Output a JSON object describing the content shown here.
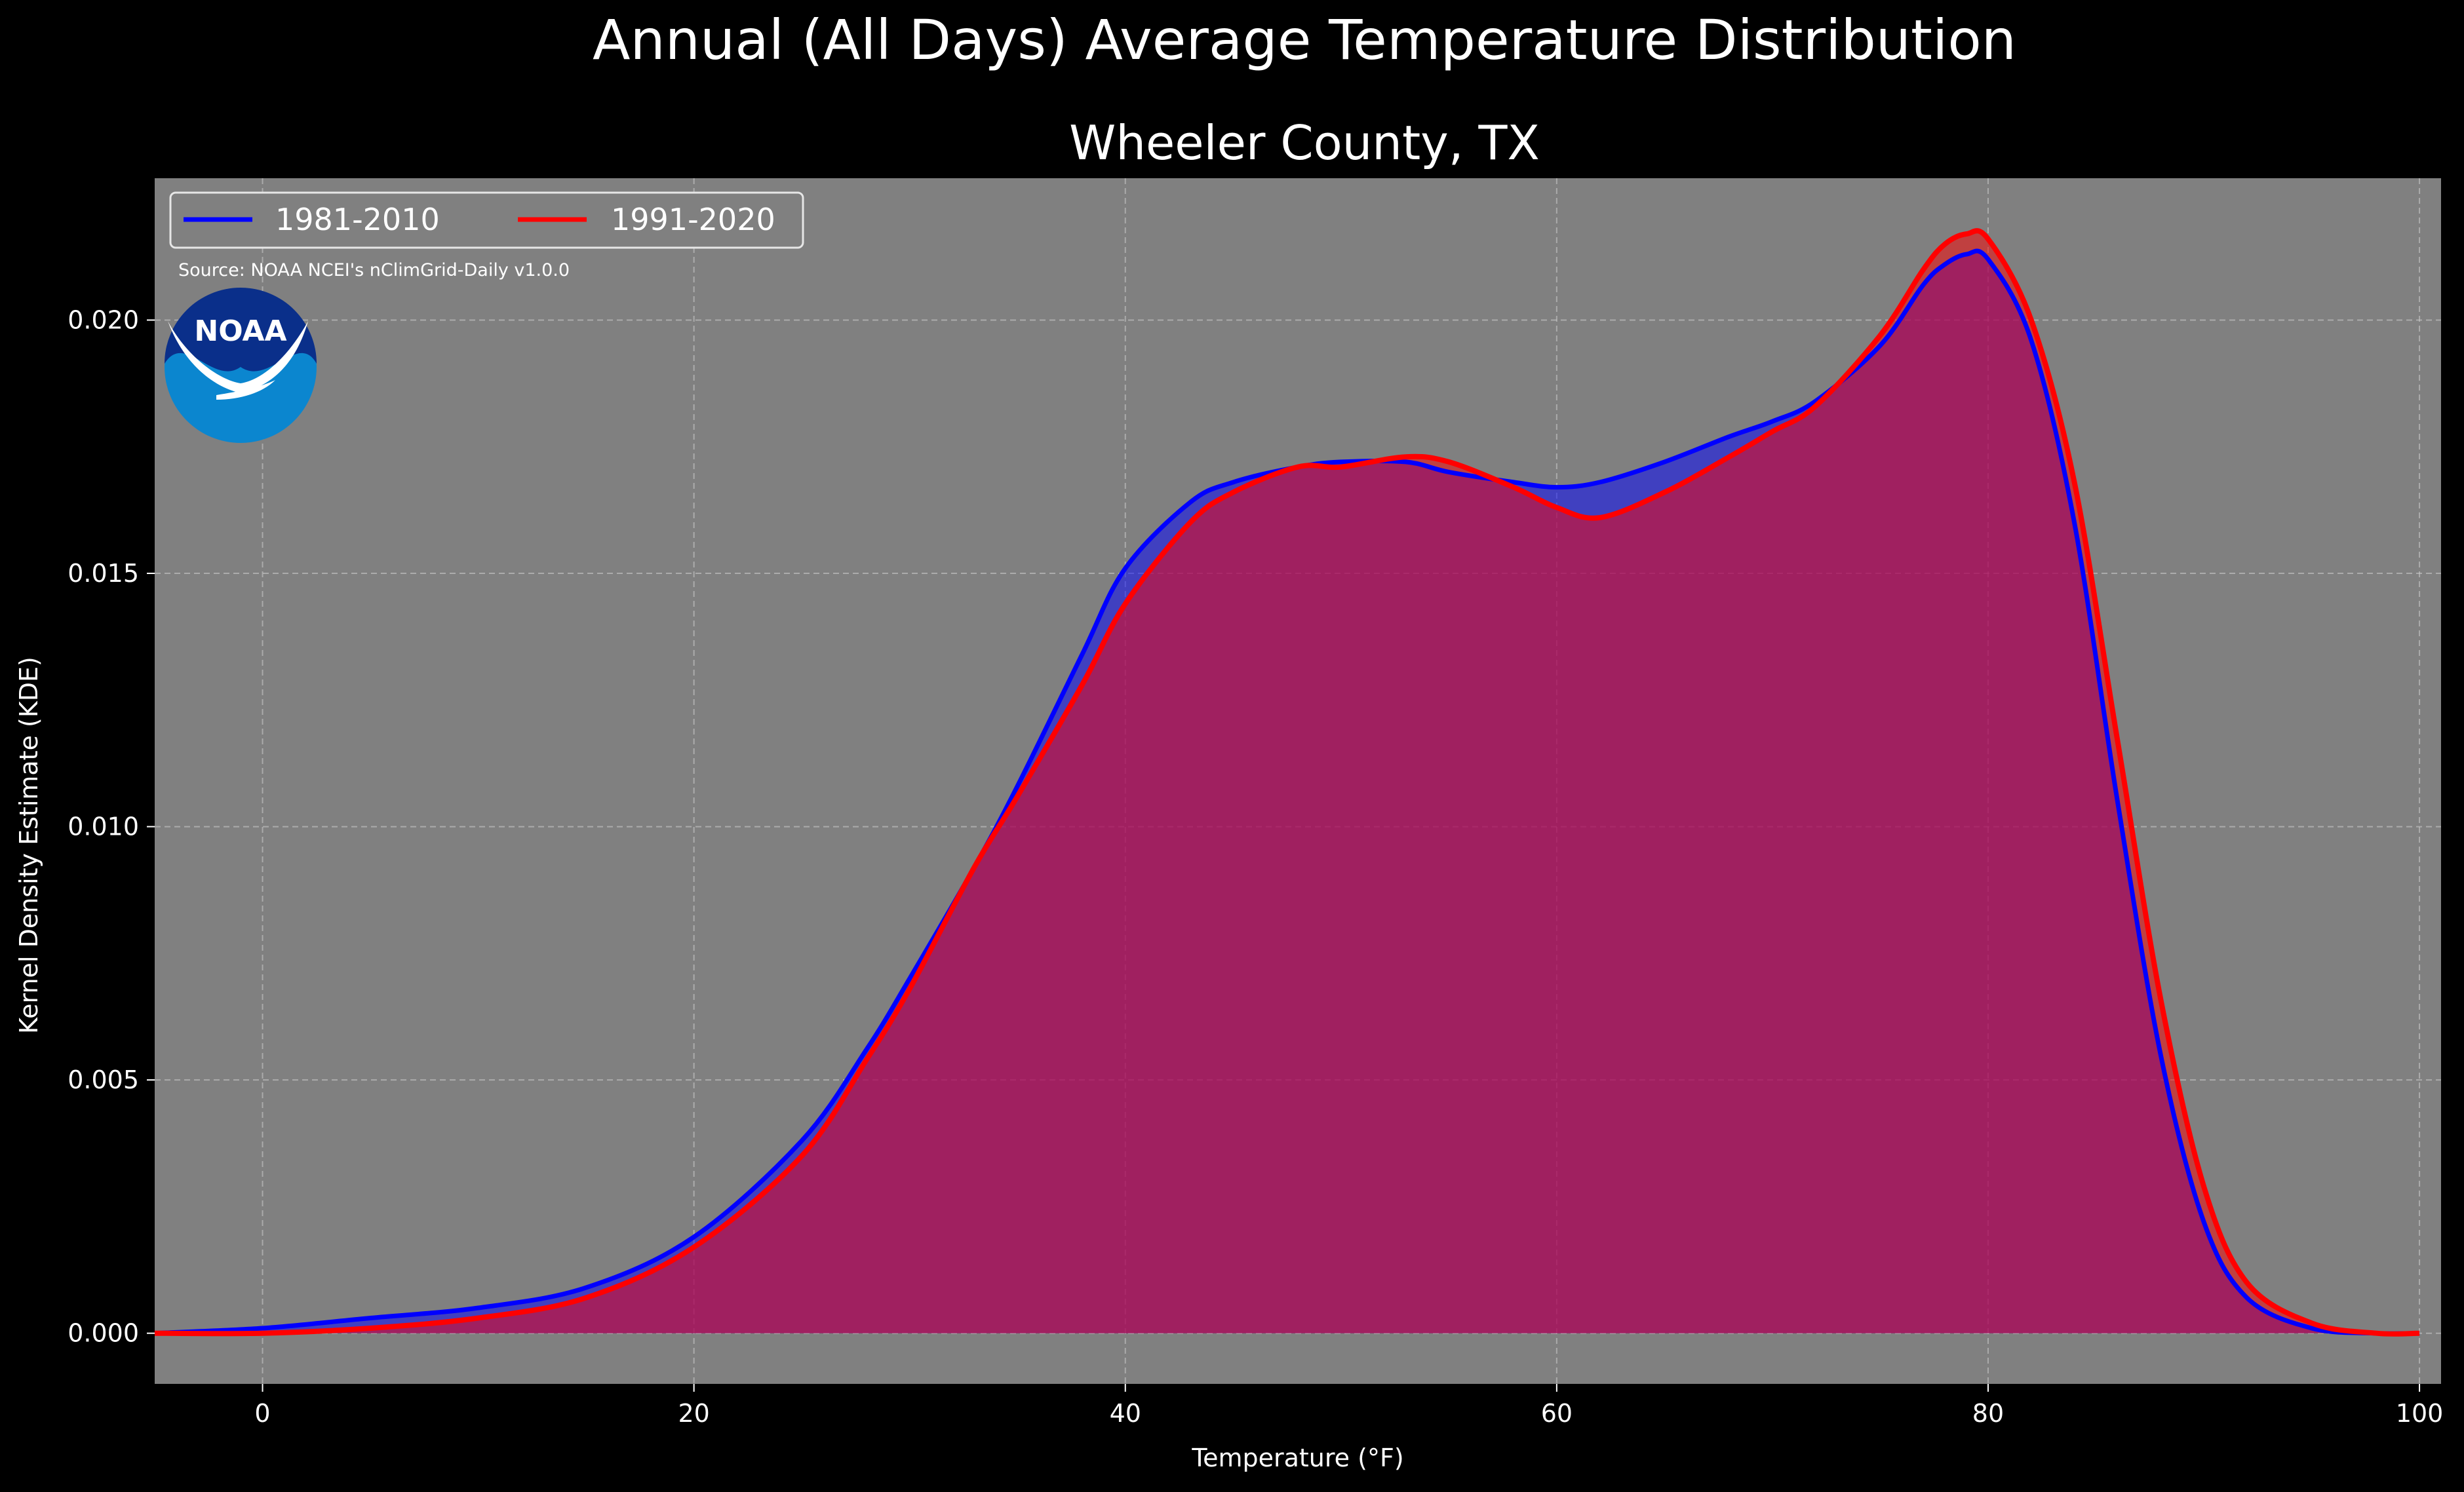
{
  "figure": {
    "suptitle": "Annual (All Days) Average Temperature Distribution",
    "source": "Source: NOAA NCEI's nClimGrid-Daily v1.0.0",
    "logo_text": "NOAA"
  },
  "colors": {
    "background": "#000000",
    "plot_background": "#808080",
    "series_1981": "#0000ff",
    "series_1991": "#ff0000",
    "overlap_fill": "#9e1f5e",
    "logo_blue_dark": "#0a2f8a",
    "logo_blue_light": "#0b86cf"
  },
  "chart_data": {
    "type": "area",
    "title": "Wheeler County, TX",
    "xlabel": "Temperature (°F)",
    "ylabel": "Kernel Density Estimate (KDE)",
    "xlim": [
      -5,
      101
    ],
    "ylim": [
      -0.001,
      0.0228
    ],
    "xticks": [
      0,
      20,
      40,
      60,
      80,
      100
    ],
    "xtick_labels": [
      "0",
      "20",
      "40",
      "60",
      "80",
      "100"
    ],
    "yticks": [
      0.0,
      0.005,
      0.01,
      0.015,
      0.02
    ],
    "ytick_labels": [
      "0.000",
      "0.005",
      "0.010",
      "0.015",
      "0.020"
    ],
    "grid": true,
    "legend_position": "top-left",
    "x": [
      -5,
      0,
      5,
      10,
      15,
      20,
      25,
      28,
      30,
      33,
      35,
      38,
      40,
      43,
      45,
      48,
      50,
      53,
      55,
      58,
      60,
      62,
      65,
      68,
      70,
      72,
      75,
      77,
      78,
      79,
      80,
      82,
      84,
      86,
      88,
      90,
      92,
      95,
      98,
      100
    ],
    "series": [
      {
        "name": "1981-2010",
        "values": [
          0.0,
          0.0001,
          0.0003,
          0.0005,
          0.0009,
          0.0019,
          0.0038,
          0.0056,
          0.007,
          0.0092,
          0.0108,
          0.0134,
          0.0151,
          0.0164,
          0.0168,
          0.0171,
          0.0172,
          0.0172,
          0.017,
          0.0168,
          0.0167,
          0.0168,
          0.0172,
          0.0177,
          0.018,
          0.0184,
          0.0195,
          0.0207,
          0.0211,
          0.0213,
          0.0212,
          0.0196,
          0.016,
          0.0105,
          0.0055,
          0.0022,
          0.0007,
          0.0001,
          0.0,
          0.0
        ]
      },
      {
        "name": "1991-2020",
        "values": [
          0.0,
          0.0,
          0.0001,
          0.0003,
          0.0007,
          0.0017,
          0.0035,
          0.0054,
          0.0068,
          0.0092,
          0.0106,
          0.0128,
          0.0144,
          0.016,
          0.0166,
          0.0171,
          0.0171,
          0.0173,
          0.0172,
          0.0167,
          0.0163,
          0.0161,
          0.0166,
          0.0173,
          0.0178,
          0.0183,
          0.0197,
          0.021,
          0.0215,
          0.0217,
          0.0216,
          0.02,
          0.0168,
          0.0117,
          0.0066,
          0.0029,
          0.001,
          0.0002,
          0.0,
          0.0
        ]
      }
    ]
  }
}
